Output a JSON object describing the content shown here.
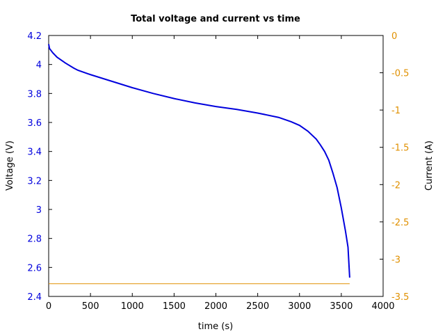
{
  "chart_data": {
    "type": "line",
    "title": "Total voltage and current vs time",
    "xlabel": "time (s)",
    "ylabel": "Voltage (V)",
    "y2label": "Current (A)",
    "xlim": [
      0,
      4000
    ],
    "ylim": [
      2.4,
      4.2
    ],
    "y2lim": [
      -3.5,
      0
    ],
    "xticks": [
      0,
      500,
      1000,
      1500,
      2000,
      2500,
      3000,
      3500,
      4000
    ],
    "yticks": [
      2.4,
      2.6,
      2.8,
      3,
      3.2,
      3.4,
      3.6,
      3.8,
      4,
      4.2
    ],
    "y2ticks": [
      0,
      -0.5,
      -1,
      -1.5,
      -2,
      -2.5,
      -3,
      -3.5
    ],
    "grid": false,
    "colors": {
      "voltage": "#0000dd",
      "current": "#e09000",
      "left_axis_text": "#0000dd",
      "right_axis_text": "#e09000"
    },
    "series": [
      {
        "axis": "left",
        "x": [
          0,
          10,
          50,
          100,
          200,
          300,
          350,
          500,
          750,
          1000,
          1250,
          1500,
          1750,
          2000,
          2250,
          2500,
          2750,
          2900,
          3000,
          3100,
          3200,
          3250,
          3300,
          3350,
          3400,
          3450,
          3500,
          3550,
          3580,
          3600
        ],
        "values": [
          4.14,
          4.11,
          4.08,
          4.05,
          4.01,
          3.975,
          3.96,
          3.93,
          3.885,
          3.84,
          3.8,
          3.765,
          3.735,
          3.71,
          3.69,
          3.665,
          3.635,
          3.605,
          3.58,
          3.54,
          3.485,
          3.445,
          3.4,
          3.34,
          3.25,
          3.15,
          3.01,
          2.85,
          2.74,
          2.53
        ]
      },
      {
        "axis": "right",
        "x": [
          0,
          3600
        ],
        "values": [
          -3.33,
          -3.33
        ]
      }
    ]
  }
}
